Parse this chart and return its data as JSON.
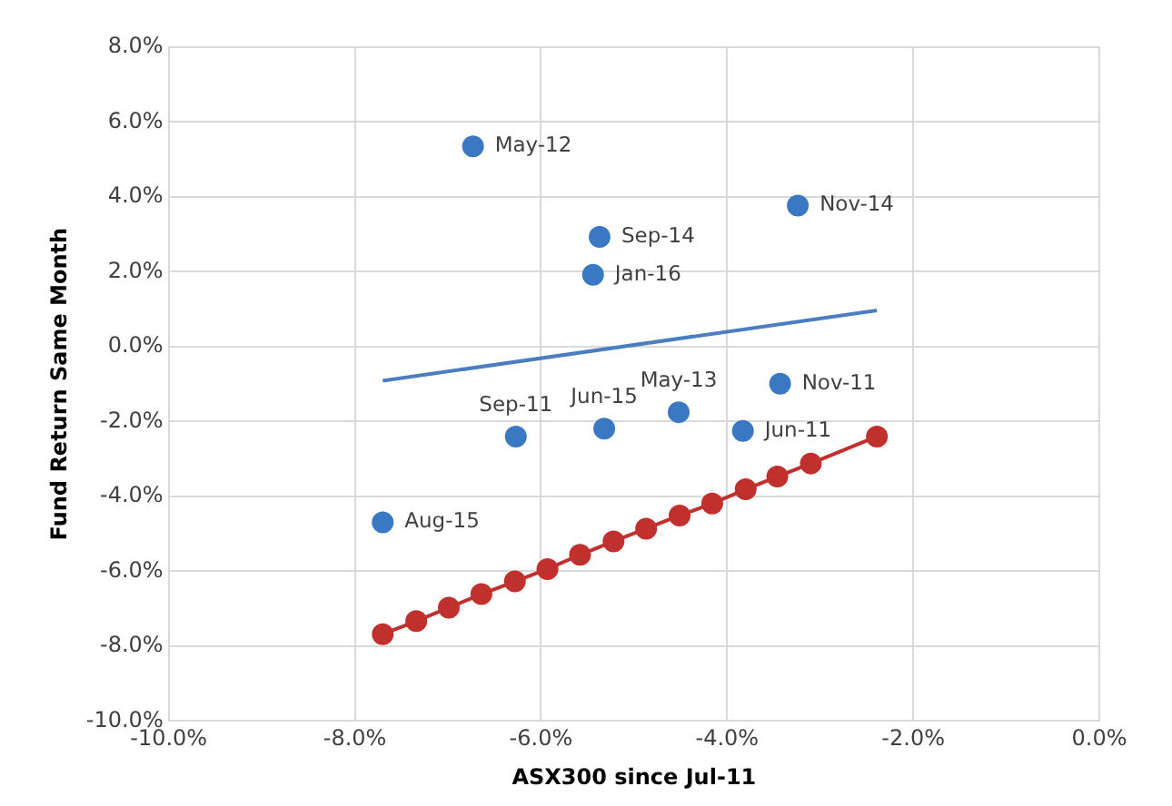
{
  "chart_data": {
    "type": "scatter",
    "xlabel": "ASX300 since Jul-11",
    "ylabel": "Fund Return Same Month",
    "xlim": [
      -10,
      0
    ],
    "ylim": [
      -10,
      8
    ],
    "xticks": [
      {
        "value": -10,
        "label": "-10.0%"
      },
      {
        "value": -8,
        "label": "-8.0%"
      },
      {
        "value": -6,
        "label": "-6.0%"
      },
      {
        "value": -4,
        "label": "-4.0%"
      },
      {
        "value": -2,
        "label": "-2.0%"
      },
      {
        "value": 0,
        "label": "0.0%"
      }
    ],
    "yticks": [
      {
        "value": -10,
        "label": "-10.0%"
      },
      {
        "value": -8,
        "label": "-8.0%"
      },
      {
        "value": -6,
        "label": "-6.0%"
      },
      {
        "value": -4,
        "label": "-4.0%"
      },
      {
        "value": -2,
        "label": "-2.0%"
      },
      {
        "value": 0,
        "label": "0.0%"
      },
      {
        "value": 2,
        "label": "2.0%"
      },
      {
        "value": 4,
        "label": "4.0%"
      },
      {
        "value": 6,
        "label": "6.0%"
      },
      {
        "value": 8,
        "label": "8.0%"
      }
    ],
    "grid": true,
    "legend": false,
    "series": [
      {
        "color": "#3a78c3",
        "marker": "circle",
        "x": [
          -6.73,
          -3.24,
          -5.37,
          -5.44,
          -3.43,
          -5.32,
          -4.52,
          -3.83,
          -6.27,
          -7.7
        ],
        "values": [
          5.35,
          3.77,
          2.93,
          1.92,
          -0.99,
          -2.19,
          -1.75,
          -2.25,
          -2.4,
          -4.69
        ],
        "value_labels": [
          "May-12",
          "Nov-14",
          "Sep-14",
          "Jan-16",
          "Nov-11",
          "Jun-15",
          "May-13",
          "Jun-11",
          "Sep-11",
          "Aug-15"
        ]
      },
      {
        "type": "line",
        "color": "#4a7ec0",
        "marker": "none",
        "x": [
          -7.7,
          -2.39
        ],
        "values": [
          -0.91,
          0.97
        ]
      },
      {
        "type": "line",
        "color": "#c0302c",
        "marker": "circle",
        "x": [
          -7.7,
          -7.34,
          -6.99,
          -6.64,
          -6.28,
          -5.93,
          -5.58,
          -5.22,
          -4.87,
          -4.51,
          -4.16,
          -3.8,
          -3.46,
          -3.1,
          -2.39
        ],
        "values": [
          -7.68,
          -7.33,
          -6.97,
          -6.61,
          -6.27,
          -5.94,
          -5.56,
          -5.2,
          -4.86,
          -4.51,
          -4.19,
          -3.81,
          -3.47,
          -3.12,
          -2.4
        ]
      }
    ]
  }
}
